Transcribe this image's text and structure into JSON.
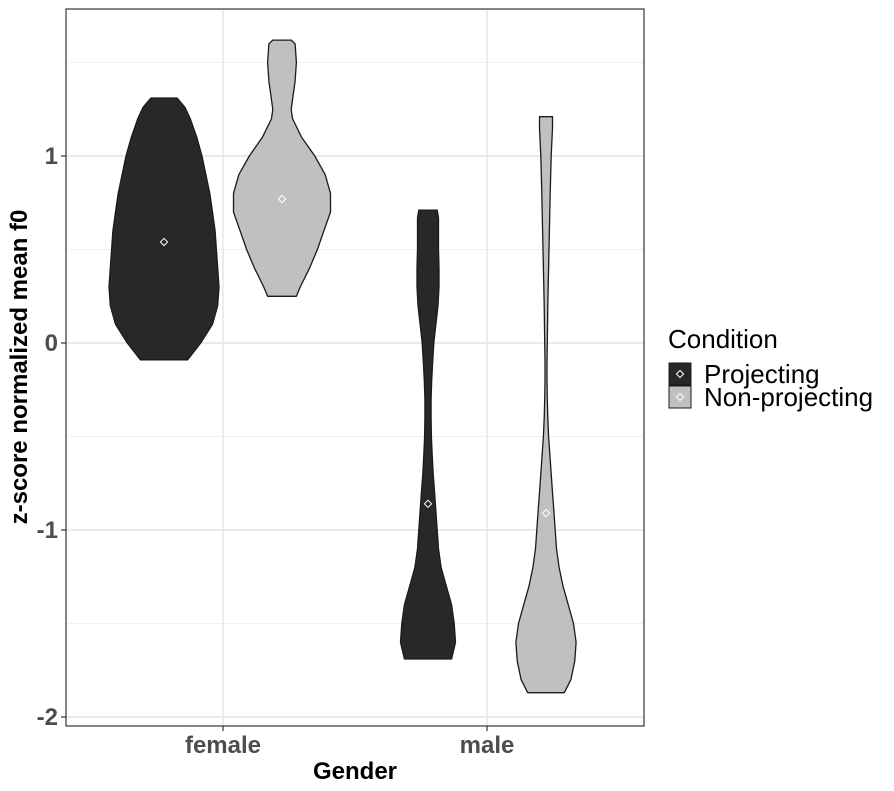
{
  "chart_data": {
    "type": "violin",
    "xlabel": "Gender",
    "ylabel": "z-score normalized mean f0",
    "ylim": [
      -2.05,
      1.78
    ],
    "yticks": [
      -2,
      -1,
      0,
      1
    ],
    "categories": [
      "female",
      "male"
    ],
    "grid": true,
    "legend": {
      "title": "Condition",
      "placement": "right",
      "entries": [
        {
          "label": "Projecting",
          "fill": "#282828"
        },
        {
          "label": "Non-projecting",
          "fill": "#c0c0c0"
        }
      ]
    },
    "series": [
      {
        "name": "Projecting",
        "fill": "#282828",
        "violins": [
          {
            "category": "female",
            "mean": 0.54,
            "profile": [
              [
                -0.09,
                0.09
              ],
              [
                0.0,
                0.14
              ],
              [
                0.1,
                0.185
              ],
              [
                0.2,
                0.205
              ],
              [
                0.3,
                0.21
              ],
              [
                0.4,
                0.205
              ],
              [
                0.5,
                0.2
              ],
              [
                0.6,
                0.195
              ],
              [
                0.7,
                0.185
              ],
              [
                0.8,
                0.175
              ],
              [
                0.9,
                0.16
              ],
              [
                1.0,
                0.145
              ],
              [
                1.1,
                0.125
              ],
              [
                1.2,
                0.1
              ],
              [
                1.26,
                0.08
              ],
              [
                1.31,
                0.05
              ]
            ]
          },
          {
            "category": "male",
            "mean": -0.86,
            "profile": [
              [
                -1.69,
                0.09
              ],
              [
                -1.6,
                0.105
              ],
              [
                -1.5,
                0.1
              ],
              [
                -1.4,
                0.09
              ],
              [
                -1.3,
                0.07
              ],
              [
                -1.2,
                0.05
              ],
              [
                -1.1,
                0.04
              ],
              [
                -1.0,
                0.035
              ],
              [
                -0.9,
                0.03
              ],
              [
                -0.8,
                0.025
              ],
              [
                -0.7,
                0.02
              ],
              [
                -0.6,
                0.016
              ],
              [
                -0.5,
                0.013
              ],
              [
                -0.4,
                0.012
              ],
              [
                -0.3,
                0.012
              ],
              [
                -0.2,
                0.014
              ],
              [
                -0.1,
                0.018
              ],
              [
                0.0,
                0.022
              ],
              [
                0.1,
                0.03
              ],
              [
                0.2,
                0.038
              ],
              [
                0.3,
                0.042
              ],
              [
                0.4,
                0.042
              ],
              [
                0.5,
                0.04
              ],
              [
                0.6,
                0.04
              ],
              [
                0.67,
                0.04
              ],
              [
                0.71,
                0.035
              ]
            ]
          }
        ]
      },
      {
        "name": "Non-projecting",
        "fill": "#c0c0c0",
        "violins": [
          {
            "category": "female",
            "mean": 0.77,
            "profile": [
              [
                0.25,
                0.055
              ],
              [
                0.3,
                0.07
              ],
              [
                0.4,
                0.105
              ],
              [
                0.5,
                0.135
              ],
              [
                0.6,
                0.16
              ],
              [
                0.7,
                0.185
              ],
              [
                0.8,
                0.185
              ],
              [
                0.9,
                0.165
              ],
              [
                1.0,
                0.125
              ],
              [
                1.1,
                0.075
              ],
              [
                1.2,
                0.04
              ],
              [
                1.25,
                0.035
              ],
              [
                1.3,
                0.04
              ],
              [
                1.4,
                0.05
              ],
              [
                1.5,
                0.055
              ],
              [
                1.6,
                0.05
              ],
              [
                1.62,
                0.035
              ]
            ]
          },
          {
            "category": "male",
            "mean": -0.91,
            "profile": [
              [
                -1.87,
                0.07
              ],
              [
                -1.8,
                0.095
              ],
              [
                -1.7,
                0.11
              ],
              [
                -1.6,
                0.115
              ],
              [
                -1.5,
                0.105
              ],
              [
                -1.4,
                0.085
              ],
              [
                -1.3,
                0.065
              ],
              [
                -1.2,
                0.05
              ],
              [
                -1.1,
                0.04
              ],
              [
                -1.0,
                0.035
              ],
              [
                -0.9,
                0.03
              ],
              [
                -0.8,
                0.025
              ],
              [
                -0.7,
                0.02
              ],
              [
                -0.6,
                0.015
              ],
              [
                -0.5,
                0.01
              ],
              [
                -0.4,
                0.007
              ],
              [
                -0.3,
                0.005
              ],
              [
                -0.2,
                0.004
              ],
              [
                -0.1,
                0.004
              ],
              [
                0.0,
                0.005
              ],
              [
                0.2,
                0.007
              ],
              [
                0.4,
                0.01
              ],
              [
                0.6,
                0.013
              ],
              [
                0.8,
                0.016
              ],
              [
                1.0,
                0.02
              ],
              [
                1.15,
                0.025
              ],
              [
                1.21,
                0.025
              ]
            ]
          }
        ]
      }
    ]
  }
}
